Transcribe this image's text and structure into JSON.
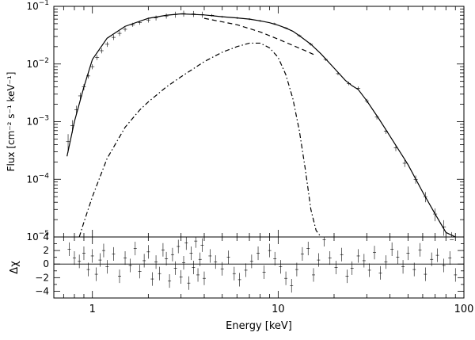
{
  "chart_data": [
    {
      "type": "line",
      "panel": "spectrum",
      "ylabel": "Flux [cm⁻² s⁻¹ keV⁻¹]",
      "xlim": [
        0.62,
        100
      ],
      "ylim": [
        1e-05,
        0.1
      ],
      "xscale": "log",
      "yscale": "log",
      "y_tick_labels": [
        {
          "value": 1e-05,
          "base": "10",
          "exp": "−5"
        },
        {
          "value": 0.0001,
          "base": "10",
          "exp": "−4"
        },
        {
          "value": 0.001,
          "base": "10",
          "exp": "−3"
        },
        {
          "value": 0.01,
          "base": "10",
          "exp": "−2"
        },
        {
          "value": 0.1,
          "base": "10",
          "exp": "−1"
        }
      ],
      "series": [
        {
          "style": "solid",
          "x": [
            0.73,
            0.8,
            0.9,
            1.0,
            1.2,
            1.5,
            2.0,
            2.5,
            3.0,
            4.0,
            5.0,
            6.0,
            7.0,
            8.0,
            9.0,
            10.0,
            11.0,
            12.0,
            13.0,
            15.0,
            17.0,
            20.0,
            23.0,
            25.0,
            27.0,
            30.0,
            35.0,
            40.0,
            50.0,
            60.0,
            70.0,
            80.0,
            90.0
          ],
          "y": [
            0.00025,
            0.001,
            0.004,
            0.012,
            0.028,
            0.045,
            0.062,
            0.07,
            0.074,
            0.071,
            0.066,
            0.063,
            0.06,
            0.056,
            0.052,
            0.047,
            0.042,
            0.037,
            0.031,
            0.022,
            0.015,
            0.0085,
            0.0052,
            0.0042,
            0.0036,
            0.0023,
            0.0011,
            0.00056,
            0.00018,
            6e-05,
            2.5e-05,
            1.2e-05,
            7e-06
          ]
        },
        {
          "style": "dashed",
          "x": [
            4.0,
            6.0,
            8.0,
            10.0,
            12.0,
            14.0,
            16.0
          ],
          "y": [
            0.062,
            0.048,
            0.036,
            0.027,
            0.021,
            0.017,
            0.014
          ]
        },
        {
          "style": "dash-dot",
          "x": [
            0.85,
            0.9,
            1.0,
            1.2,
            1.5,
            1.8,
            2.0,
            2.5,
            3.0,
            4.0,
            5.0,
            6.0,
            7.0,
            8.0,
            9.0,
            10.0,
            11.0,
            12.0,
            13.0,
            14.0,
            15.0,
            16.0,
            17.0
          ],
          "y": [
            1e-05,
            1.8e-05,
            5e-05,
            0.00023,
            0.0008,
            0.0016,
            0.0022,
            0.004,
            0.006,
            0.011,
            0.016,
            0.02,
            0.023,
            0.023,
            0.019,
            0.013,
            0.0065,
            0.0025,
            0.0007,
            0.00015,
            3e-05,
            1.3e-05,
            9e-06
          ]
        }
      ],
      "data_points": {
        "x": [
          0.74,
          0.78,
          0.82,
          0.86,
          0.9,
          0.95,
          1.0,
          1.06,
          1.12,
          1.2,
          1.3,
          1.4,
          1.5,
          1.65,
          1.8,
          2.0,
          2.2,
          2.5,
          2.8,
          3.1,
          3.5,
          3.9,
          4.4,
          5.0,
          6.0,
          7.0,
          8.0,
          9.5,
          11.0,
          13.0,
          15.0,
          18.0,
          21.0,
          24.0,
          27.0,
          30.0,
          34.0,
          38.0,
          43.0,
          48.0,
          55.0,
          62.0,
          70.0,
          78.0,
          86.0
        ],
        "y": [
          0.00045,
          0.00085,
          0.0016,
          0.0028,
          0.004,
          0.0062,
          0.009,
          0.013,
          0.017,
          0.022,
          0.029,
          0.034,
          0.04,
          0.048,
          0.052,
          0.058,
          0.063,
          0.068,
          0.072,
          0.075,
          0.074,
          0.072,
          0.07,
          0.066,
          0.063,
          0.06,
          0.056,
          0.05,
          0.042,
          0.031,
          0.022,
          0.012,
          0.0068,
          0.0046,
          0.0038,
          0.0023,
          0.0012,
          0.00068,
          0.00035,
          0.00019,
          0.0001,
          5e-05,
          2.5e-05,
          1.5e-05,
          9e-06
        ],
        "yerr_frac": [
          0.35,
          0.25,
          0.18,
          0.14,
          0.12,
          0.1,
          0.1,
          0.1,
          0.1,
          0.1,
          0.1,
          0.1,
          0.08,
          0.08,
          0.08,
          0.1,
          0.1,
          0.1,
          0.12,
          0.12,
          0.12,
          0.12,
          0.05,
          0.04,
          0.04,
          0.04,
          0.04,
          0.04,
          0.04,
          0.05,
          0.05,
          0.06,
          0.06,
          0.07,
          0.07,
          0.08,
          0.09,
          0.1,
          0.12,
          0.14,
          0.16,
          0.2,
          0.25,
          0.3,
          0.35
        ]
      }
    },
    {
      "type": "scatter",
      "panel": "residuals",
      "xlabel": "Energy [keV]",
      "ylabel": "Δχ",
      "xlim": [
        0.62,
        100
      ],
      "ylim": [
        -5,
        4
      ],
      "xscale": "log",
      "x_tick_labels": [
        {
          "value": 1,
          "label": "1"
        },
        {
          "value": 10,
          "label": "10"
        },
        {
          "value": 100,
          "label": "100"
        }
      ],
      "y_tick_labels": [
        {
          "value": 4,
          "label": "4"
        },
        {
          "value": 2,
          "label": "2"
        },
        {
          "value": 0,
          "label": "0"
        },
        {
          "value": -2,
          "label": "−2"
        },
        {
          "value": -4,
          "label": "−4"
        }
      ],
      "zero_line": 0,
      "residuals": {
        "x": [
          0.75,
          0.8,
          0.85,
          0.9,
          0.95,
          1.0,
          1.05,
          1.1,
          1.15,
          1.2,
          1.3,
          1.4,
          1.5,
          1.6,
          1.7,
          1.8,
          1.9,
          2.0,
          2.1,
          2.2,
          2.3,
          2.4,
          2.5,
          2.6,
          2.7,
          2.8,
          2.9,
          3.0,
          3.1,
          3.2,
          3.3,
          3.4,
          3.5,
          3.6,
          3.7,
          3.8,
          3.9,
          4.0,
          4.3,
          4.6,
          5.0,
          5.4,
          5.8,
          6.2,
          6.7,
          7.2,
          7.8,
          8.4,
          9.0,
          9.6,
          10.3,
          11.0,
          11.8,
          12.6,
          13.5,
          14.5,
          15.5,
          16.5,
          17.7,
          19.0,
          20.5,
          22.0,
          23.5,
          25.0,
          27.0,
          29.0,
          31.0,
          33.0,
          35.5,
          38.0,
          41.0,
          44.0,
          47.0,
          50.0,
          54.0,
          58.0,
          62.0,
          67.0,
          72.0,
          78.0,
          84.0,
          90.0
        ],
        "y": [
          2.2,
          0.9,
          0.4,
          1.6,
          -0.8,
          1.2,
          -1.5,
          0.6,
          2.0,
          -0.4,
          1.5,
          -1.8,
          0.9,
          -0.2,
          2.3,
          -1.1,
          0.5,
          1.8,
          -2.2,
          0.3,
          -1.4,
          2.1,
          0.8,
          -2.5,
          1.4,
          -0.6,
          2.6,
          -1.9,
          0.2,
          3.1,
          -2.8,
          1.6,
          -0.5,
          3.4,
          -1.6,
          0.7,
          2.8,
          -2.1,
          1.2,
          0.3,
          -0.7,
          1.0,
          -1.4,
          -2.3,
          -0.9,
          0.4,
          1.6,
          -1.2,
          2.0,
          0.8,
          -0.4,
          -2.1,
          -3.2,
          -0.8,
          1.5,
          2.3,
          -1.6,
          0.6,
          3.6,
          0.9,
          -0.5,
          1.4,
          -1.8,
          -0.6,
          1.2,
          0.5,
          -0.9,
          1.7,
          -1.3,
          0.3,
          2.2,
          1.0,
          -0.4,
          1.6,
          -0.8,
          2.1,
          -1.5,
          0.7,
          1.3,
          -0.2,
          0.9,
          -1.6
        ],
        "yerr": 1
      }
    }
  ]
}
